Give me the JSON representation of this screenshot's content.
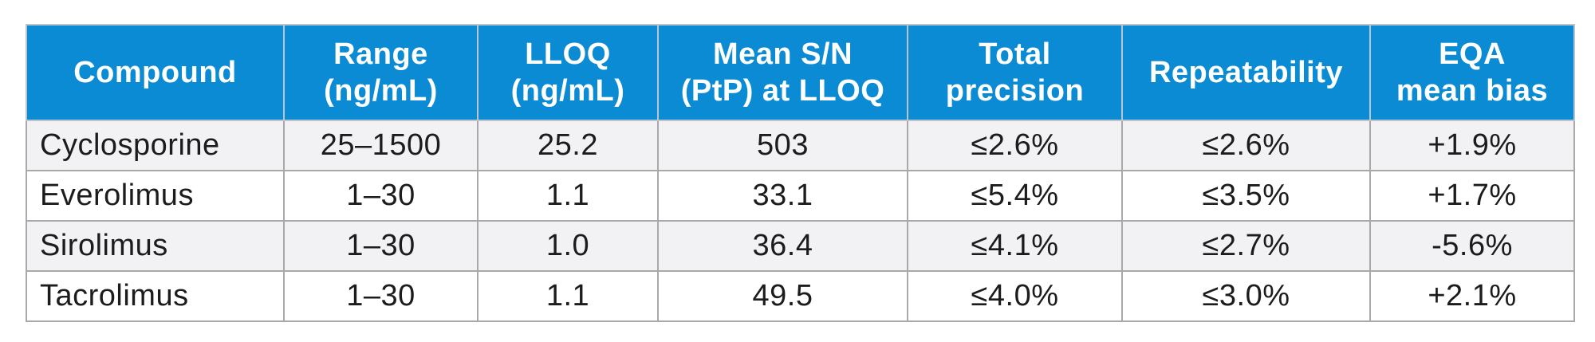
{
  "colors": {
    "header_bg": "#0a8bd4",
    "header_text": "#ffffff",
    "row_alt_bg": "#f2f2f4",
    "border": "#a9a9a9"
  },
  "headers": [
    [
      "Compound"
    ],
    [
      "Range",
      "(ng/mL)"
    ],
    [
      "LLOQ",
      "(ng/mL)"
    ],
    [
      "Mean S/N",
      "(PtP) at LLOQ"
    ],
    [
      "Total",
      "precision"
    ],
    [
      "Repeatability"
    ],
    [
      "EQA",
      "mean bias"
    ]
  ],
  "rows": [
    [
      "Cyclosporine",
      "25–1500",
      "25.2",
      "503",
      "≤2.6%",
      "≤2.6%",
      "+1.9%"
    ],
    [
      "Everolimus",
      "1–30",
      "1.1",
      "33.1",
      "≤5.4%",
      "≤3.5%",
      "+1.7%"
    ],
    [
      "Sirolimus",
      "1–30",
      "1.0",
      "36.4",
      "≤4.1%",
      "≤2.7%",
      "-5.6%"
    ],
    [
      "Tacrolimus",
      "1–30",
      "1.1",
      "49.5",
      "≤4.0%",
      "≤3.0%",
      "+2.1%"
    ]
  ]
}
